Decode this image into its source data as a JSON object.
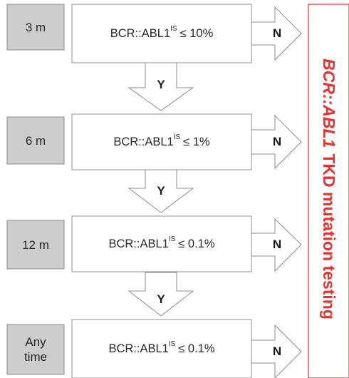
{
  "colors": {
    "time_box_fill": "#cdcdcd",
    "box_stroke": "#8c8c8c",
    "text": "#262626",
    "result_red": "#e8312f"
  },
  "stages": [
    {
      "time": "3 m",
      "gene": "BCR::ABL1",
      "sup": "IS",
      "threshold": "≤ 10%",
      "no_label": "N",
      "yes_label": "Y"
    },
    {
      "time": "6 m",
      "gene": "BCR::ABL1",
      "sup": "IS",
      "threshold": "≤ 1%",
      "no_label": "N",
      "yes_label": "Y"
    },
    {
      "time": "12 m",
      "gene": "BCR::ABL1",
      "sup": "IS",
      "threshold": "≤ 0.1%",
      "no_label": "N",
      "yes_label": "Y"
    },
    {
      "time_line1": "Any",
      "time_line2": "time",
      "gene": "BCR::ABL1",
      "sup": "IS",
      "threshold": "≤ 0.1%",
      "no_label": "N"
    }
  ],
  "result": {
    "gene_italic": "BCR::ABL1",
    "rest": "TKD mutation testing"
  }
}
